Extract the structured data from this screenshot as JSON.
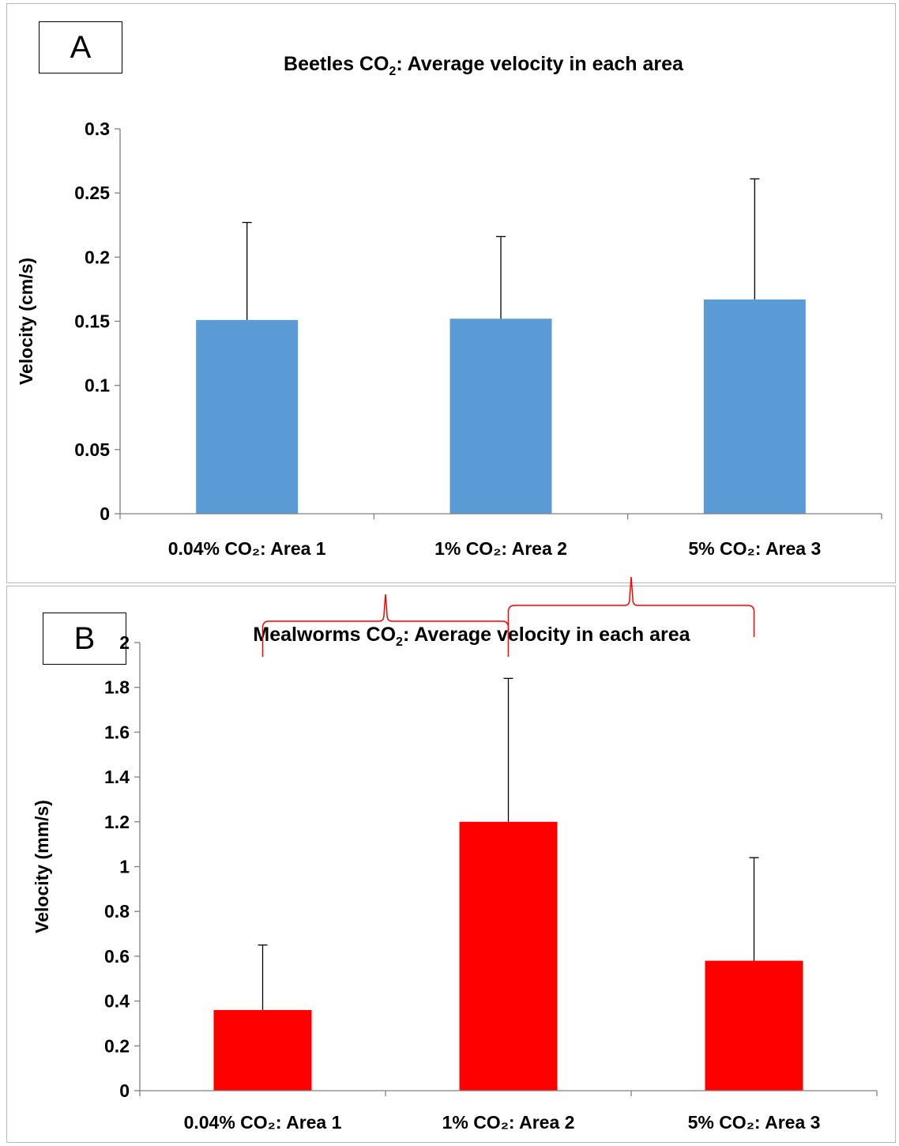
{
  "panels": [
    {
      "label": "A"
    },
    {
      "label": "B"
    }
  ],
  "chart_data": [
    {
      "type": "bar",
      "title_main": "Beetles CO",
      "title_sub": "2",
      "title_rest": ": Average velocity in each area",
      "ylabel": "Velocity (cm/s)",
      "categories": [
        "0.04% CO₂: Area 1",
        "1% CO₂: Area 2",
        "5% CO₂: Area 3"
      ],
      "values": [
        0.151,
        0.152,
        0.167
      ],
      "error_upper": [
        0.227,
        0.216,
        0.261
      ],
      "ylim": [
        0,
        0.3
      ],
      "yticks": [
        0,
        0.05,
        0.1,
        0.15,
        0.2,
        0.25,
        0.3
      ],
      "ytick_labels": [
        "0",
        "0.05",
        "0.1",
        "0.15",
        "0.2",
        "0.25",
        "0.3"
      ],
      "bar_color": "#5b9bd5",
      "grid": false
    },
    {
      "type": "bar",
      "title_main": "Mealworms CO",
      "title_sub": "2",
      "title_rest": ": Average velocity in each area",
      "ylabel": "Velocity (mm/s)",
      "categories": [
        "0.04% CO₂: Area 1",
        "1% CO₂: Area 2",
        "5% CO₂: Area 3"
      ],
      "values": [
        0.36,
        1.2,
        0.58
      ],
      "error_upper": [
        0.65,
        1.84,
        1.04
      ],
      "ylim": [
        0,
        2
      ],
      "yticks": [
        0,
        0.2,
        0.4,
        0.6,
        0.8,
        1,
        1.2,
        1.4,
        1.6,
        1.8,
        2
      ],
      "ytick_labels": [
        "0",
        "0.2",
        "0.4",
        "0.6",
        "0.8",
        "1",
        "1.2",
        "1.4",
        "1.6",
        "1.8",
        "2"
      ],
      "bar_color": "#ff0000",
      "annotations": [
        {
          "type": "brace",
          "from": "0.04% CO₂: Area 1",
          "to": "1% CO₂: Area 2",
          "color": "#ff0000"
        },
        {
          "type": "brace",
          "from": "1% CO₂: Area 2",
          "to": "5% CO₂: Area 3",
          "color": "#ff0000"
        }
      ],
      "grid": false
    }
  ]
}
